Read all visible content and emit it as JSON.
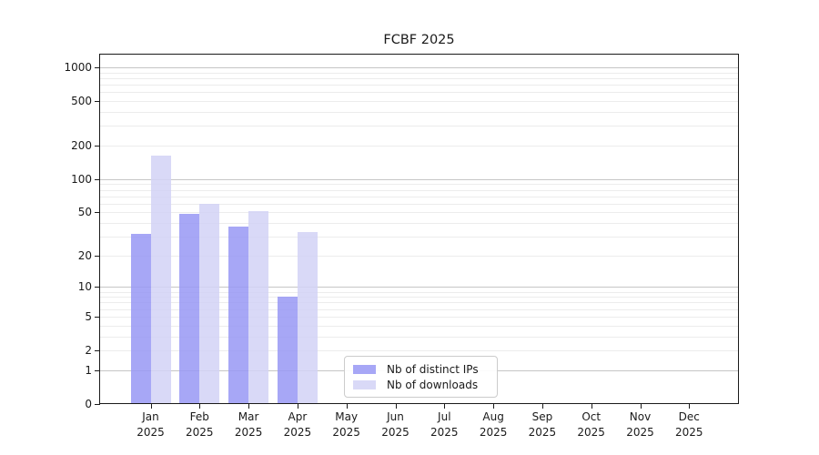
{
  "title": "FCBF 2025",
  "chart_data": {
    "type": "bar",
    "title": "FCBF 2025",
    "categories": [
      "Jan 2025",
      "Feb 2025",
      "Mar 2025",
      "Apr 2025",
      "May 2025",
      "Jun 2025",
      "Jul 2025",
      "Aug 2025",
      "Sep 2025",
      "Oct 2025",
      "Nov 2025",
      "Dec 2025"
    ],
    "category_line1": [
      "Jan",
      "Feb",
      "Mar",
      "Apr",
      "May",
      "Jun",
      "Jul",
      "Aug",
      "Sep",
      "Oct",
      "Nov",
      "Dec"
    ],
    "category_line2": [
      "2025",
      "2025",
      "2025",
      "2025",
      "2025",
      "2025",
      "2025",
      "2025",
      "2025",
      "2025",
      "2025",
      "2025"
    ],
    "series": [
      {
        "name": "Nb of distinct IPs",
        "color": "#9898f4",
        "values": [
          32,
          48,
          37,
          8,
          0,
          0,
          0,
          0,
          0,
          0,
          0,
          0
        ]
      },
      {
        "name": "Nb of downloads",
        "color": "#d2d2f6",
        "values": [
          163,
          60,
          51,
          33,
          0,
          0,
          0,
          0,
          0,
          0,
          0,
          0
        ]
      }
    ],
    "y_ticks": [
      0,
      1,
      2,
      5,
      10,
      20,
      50,
      100,
      200,
      500,
      1000
    ],
    "y_scale": "log10(1+v)",
    "ylim": [
      0,
      1300
    ],
    "grid": true,
    "legend_position": "lower center",
    "xlabel": "",
    "ylabel": ""
  },
  "colors": {
    "background": "#ffffff",
    "axis": "#1a1a1a",
    "text": "#1a1a1a",
    "major_grid": "#c6c6c6",
    "minor_grid": "#ececec",
    "legend_border": "#cccccc",
    "bar_ips": "#9898f4",
    "bar_downloads": "#d2d2f6"
  }
}
